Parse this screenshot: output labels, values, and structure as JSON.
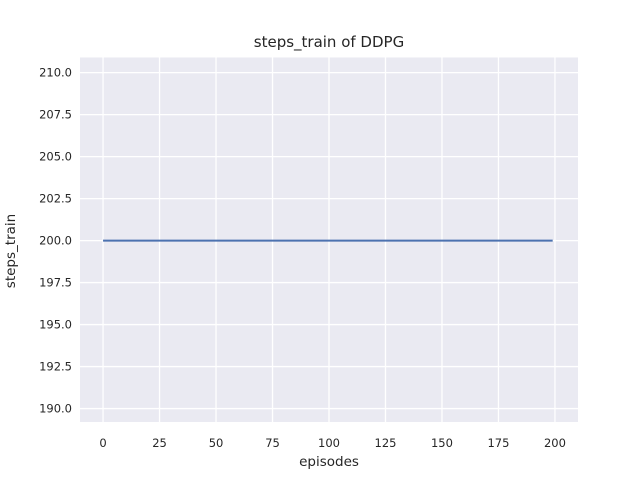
{
  "figure": {
    "background": "#ffffff"
  },
  "chart_data": {
    "type": "line",
    "title": "steps_train of DDPG",
    "xlabel": "episodes",
    "ylabel": "steps_train",
    "x_ticks": [
      0,
      25,
      50,
      75,
      100,
      125,
      150,
      175,
      200
    ],
    "y_ticks": [
      190.0,
      192.5,
      195.0,
      197.5,
      200.0,
      202.5,
      205.0,
      207.5,
      210.0
    ],
    "y_tick_decimals": 1,
    "xlim": [
      -10.2,
      210.2
    ],
    "ylim": [
      189.2,
      210.9
    ],
    "grid": true,
    "legend_position": "none",
    "plot_background_color": "#EAEAF2",
    "grid_color": "#FFFFFF",
    "text_color": "#262626",
    "series": [
      {
        "name": "steps_train",
        "color": "#4C72B0",
        "x": [
          0,
          199
        ],
        "y": [
          200,
          200
        ],
        "description": "constant value 200 for all episodes 0 through 199"
      }
    ]
  }
}
